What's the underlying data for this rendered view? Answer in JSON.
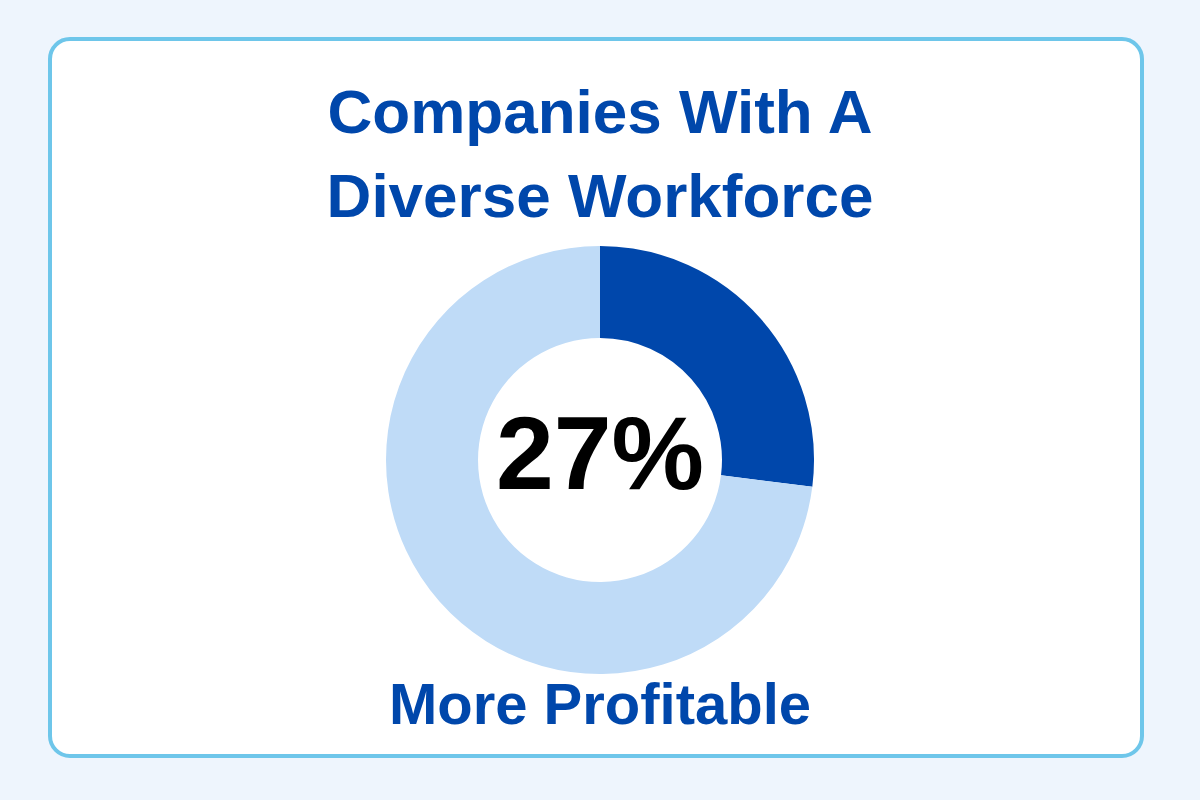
{
  "chart_data": {
    "type": "donut",
    "title": "Companies With A Diverse Workforce",
    "categories": [
      null,
      null
    ],
    "values": [
      27,
      73
    ],
    "colors": [
      "#0047ab",
      "#bfdbf7"
    ],
    "value_labels": [
      "27%",
      null
    ],
    "annotations": [
      "More Profitable"
    ],
    "legend": false
  }
}
